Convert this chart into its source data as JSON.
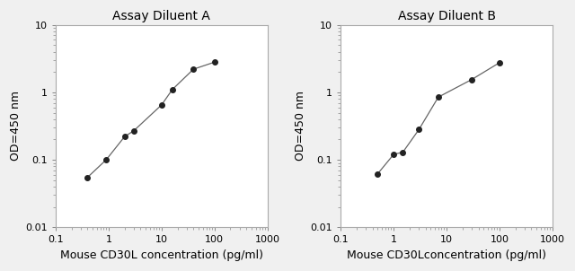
{
  "chart_a": {
    "title": "Assay Diluent A",
    "x": [
      0.4,
      0.9,
      2.0,
      3.0,
      10,
      16,
      40,
      100
    ],
    "y": [
      0.055,
      0.1,
      0.22,
      0.27,
      0.65,
      1.1,
      2.2,
      2.8
    ],
    "xlabel": "Mouse CD30L concentration (pg/ml)",
    "ylabel": "OD=450 nm",
    "xlim": [
      0.2,
      500
    ],
    "ylim": [
      0.01,
      10
    ]
  },
  "chart_b": {
    "title": "Assay Diluent B",
    "x": [
      0.5,
      1.0,
      1.5,
      3.0,
      7,
      30,
      100
    ],
    "y": [
      0.062,
      0.12,
      0.13,
      0.28,
      0.85,
      1.55,
      2.75
    ],
    "xlabel": "Mouse CD30Lconcentration (pg/ml)",
    "ylabel": "OD=450 nm",
    "xlim": [
      0.2,
      500
    ],
    "ylim": [
      0.01,
      10
    ]
  },
  "line_color": "#666666",
  "marker_color": "#222222",
  "marker_size": 4,
  "title_fontsize": 10,
  "label_fontsize": 9,
  "tick_fontsize": 8,
  "spine_color": "#aaaaaa",
  "fig_bg": "#f0f0f0"
}
